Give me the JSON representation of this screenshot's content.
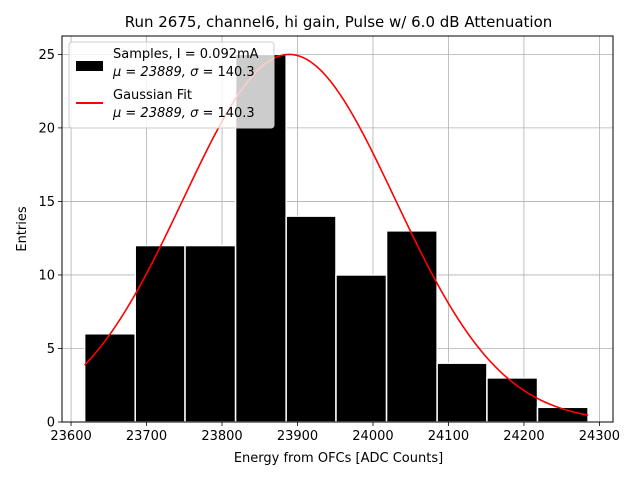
{
  "chart_data": {
    "type": "bar",
    "title": "Run 2675, channel6, hi gain, Pulse w/ 6.0 dB Attenuation",
    "xlabel": "Energy from OFCs [ADC Counts]",
    "ylabel": "Entries",
    "xlim": [
      23588,
      24318
    ],
    "ylim": [
      0,
      26.25
    ],
    "xticks": [
      23600,
      23700,
      23800,
      23900,
      24000,
      24100,
      24200,
      24300
    ],
    "yticks": [
      0,
      5,
      10,
      15,
      20,
      25
    ],
    "grid": true,
    "bin_edges": [
      23618,
      23685,
      23751,
      23818,
      23885,
      23951,
      24018,
      24085,
      24151,
      24218,
      24285
    ],
    "counts": [
      6,
      12,
      12,
      25,
      14,
      10,
      13,
      4,
      3,
      1
    ],
    "fit": {
      "mu": 23889,
      "sigma": 140.3,
      "amplitude": 25,
      "x_range": [
        23618,
        24285
      ]
    },
    "legend": {
      "position": "upper-left",
      "entries": [
        {
          "line1": "Samples, I = 0.092mA",
          "line2_prefix": "μ = 23889, ",
          "line2_sigma": "σ",
          "line2_suffix": " = 140.3"
        },
        {
          "line1": "Gaussian Fit",
          "line2_prefix": "μ = 23889, ",
          "line2_sigma": "σ",
          "line2_suffix": " = 140.3"
        }
      ]
    },
    "colors": {
      "bars": "#000000",
      "bar_edge": "#ffffff",
      "fit": "#ff0000",
      "grid": "#b0b0b0"
    }
  }
}
